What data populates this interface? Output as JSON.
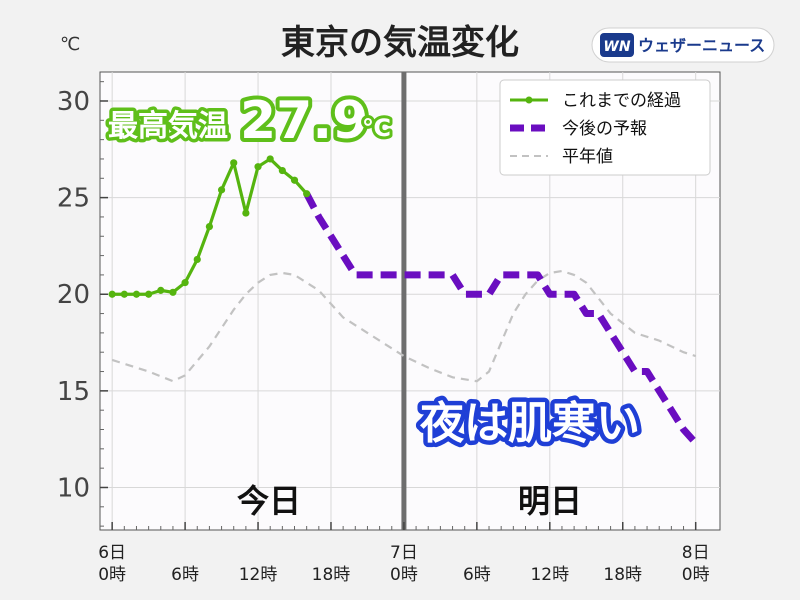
{
  "title": "東京の気温変化",
  "unit": "℃",
  "logo": {
    "mark": "WN",
    "text": "ウェザーニュース"
  },
  "max_temp": {
    "label": "最高気温",
    "value": "27.9",
    "unit": "℃"
  },
  "callout": "夜は肌寒い",
  "day_labels": [
    "今日",
    "明日"
  ],
  "colors": {
    "observed": "#55b40f",
    "forecast": "#6a0dc0",
    "normal": "#c2c2c2",
    "divider": "#6e6e6e",
    "callout": "#1f3fd6"
  },
  "chart_data": {
    "type": "line",
    "title": "東京の気温変化",
    "ylabel": "℃",
    "ylim": [
      7.8,
      31.5
    ],
    "yticks": [
      10,
      15,
      20,
      25,
      30
    ],
    "xlim": [
      -1,
      50
    ],
    "xticks": [
      {
        "x": 0,
        "line1": "6日",
        "line2": "0時"
      },
      {
        "x": 6,
        "line1": "",
        "line2": "6時"
      },
      {
        "x": 12,
        "line1": "",
        "line2": "12時"
      },
      {
        "x": 18,
        "line1": "",
        "line2": "18時"
      },
      {
        "x": 24,
        "line1": "7日",
        "line2": "0時"
      },
      {
        "x": 30,
        "line1": "",
        "line2": "6時"
      },
      {
        "x": 36,
        "line1": "",
        "line2": "12時"
      },
      {
        "x": 42,
        "line1": "",
        "line2": "18時"
      },
      {
        "x": 48,
        "line1": "8日",
        "line2": "0時"
      }
    ],
    "grid": true,
    "legend_position": "top-right",
    "divider_x": 24,
    "series": [
      {
        "name": "これまでの経過",
        "style": "solid-markers",
        "x": [
          0,
          1,
          2,
          3,
          4,
          5,
          6,
          7,
          8,
          9,
          10,
          11,
          12,
          13,
          14,
          15,
          16
        ],
        "y": [
          20.0,
          20.0,
          20.0,
          20.0,
          20.2,
          20.1,
          20.6,
          21.8,
          23.5,
          25.4,
          26.8,
          24.2,
          26.6,
          27.0,
          26.4,
          25.9,
          25.2
        ]
      },
      {
        "name": "今後の予報",
        "style": "dashed-thick",
        "x": [
          16,
          17,
          18,
          19,
          20,
          21,
          22,
          23,
          24,
          25,
          26,
          27,
          28,
          29,
          30,
          31,
          32,
          33,
          34,
          35,
          36,
          37,
          38,
          39,
          40,
          41,
          42,
          43,
          44,
          45,
          46,
          47,
          48
        ],
        "y": [
          25.2,
          24.0,
          23.0,
          22.0,
          21.0,
          21.0,
          21.0,
          21.0,
          21.0,
          21.0,
          21.0,
          21.0,
          21.0,
          20.0,
          20.0,
          20.0,
          21.0,
          21.0,
          21.0,
          21.0,
          20.0,
          20.0,
          20.0,
          19.0,
          19.0,
          18.0,
          17.0,
          16.0,
          16.0,
          15.0,
          14.0,
          13.0,
          12.3
        ]
      },
      {
        "name": "平年値",
        "style": "dashed-thin",
        "x": [
          0,
          3,
          5,
          6,
          8,
          10,
          11,
          12,
          13,
          14,
          15,
          17,
          19,
          21,
          23,
          24,
          26,
          28,
          30,
          31,
          32,
          33,
          34,
          35,
          36,
          37,
          38,
          39,
          41,
          43,
          45,
          47,
          48
        ],
        "y": [
          16.6,
          16.0,
          15.5,
          15.8,
          17.3,
          19.2,
          20.0,
          20.6,
          21.0,
          21.1,
          21.0,
          20.2,
          18.8,
          18.0,
          17.2,
          16.8,
          16.2,
          15.7,
          15.5,
          16.0,
          17.5,
          19.0,
          20.0,
          20.7,
          21.1,
          21.2,
          21.0,
          20.6,
          19.0,
          18.0,
          17.6,
          17.0,
          16.8
        ]
      }
    ]
  }
}
